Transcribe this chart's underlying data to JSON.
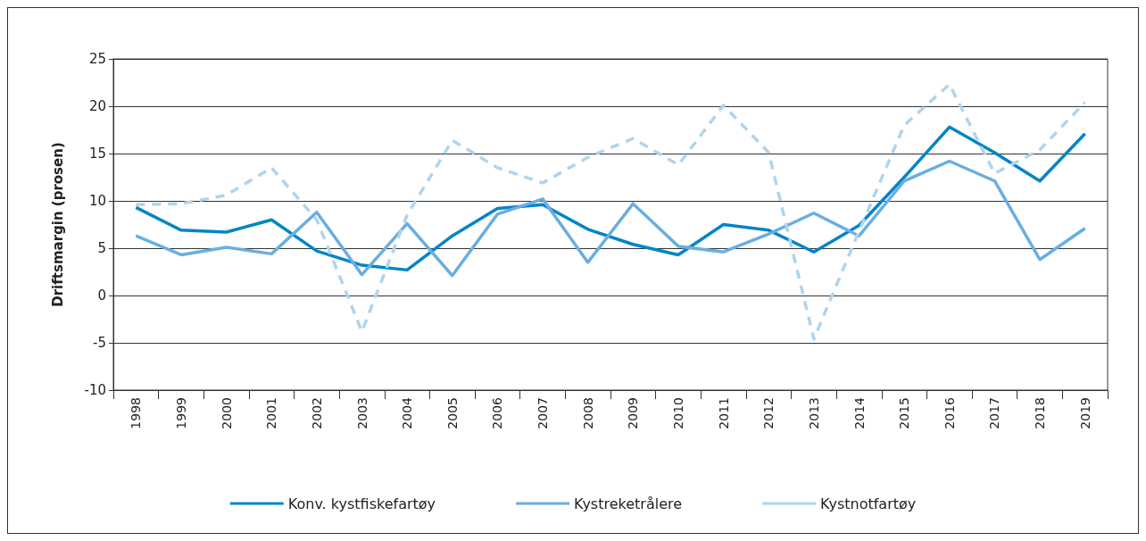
{
  "chart_data": {
    "type": "line",
    "ylabel": "Driftsmargin (prosen)",
    "categories": [
      "1998",
      "1999",
      "2000",
      "2001",
      "2002",
      "2003",
      "2004",
      "2005",
      "2006",
      "2007",
      "2008",
      "2009",
      "2010",
      "2011",
      "2012",
      "2013",
      "2014",
      "2015",
      "2016",
      "2017",
      "2018",
      "2019"
    ],
    "series": [
      {
        "name": "Konv. kystfiskefartøy",
        "color": "#0085c7",
        "line_style": "solid",
        "values": [
          9.3,
          6.9,
          6.7,
          8.0,
          4.7,
          3.2,
          2.7,
          6.3,
          9.2,
          9.6,
          7.0,
          5.4,
          4.3,
          7.5,
          6.9,
          4.6,
          7.4,
          12.5,
          17.8,
          15.1,
          12.1,
          17.1
        ]
      },
      {
        "name": "Kystreketrålere",
        "color": "#6aaee0",
        "line_style": "solid",
        "values": [
          6.3,
          4.3,
          5.1,
          4.4,
          8.8,
          2.2,
          7.6,
          2.1,
          8.6,
          10.2,
          3.5,
          9.7,
          5.2,
          4.6,
          6.5,
          8.7,
          6.3,
          12.1,
          14.2,
          12.1,
          3.8,
          7.1
        ]
      },
      {
        "name": "Kystnotfartøy",
        "color": "#b0d4ec",
        "line_style": "dashed",
        "values": [
          9.6,
          9.7,
          10.6,
          13.5,
          8.0,
          -3.8,
          8.5,
          16.4,
          13.5,
          11.9,
          14.6,
          16.6,
          13.8,
          20.1,
          15.1,
          -4.6,
          6.8,
          18.0,
          22.3,
          12.9,
          15.4,
          20.4
        ]
      }
    ],
    "ylim": [
      -10,
      25
    ],
    "yticks": [
      -10,
      -5,
      0,
      5,
      10,
      15,
      20,
      25
    ],
    "grid": "y",
    "legend": "bottom",
    "marker": "none"
  }
}
